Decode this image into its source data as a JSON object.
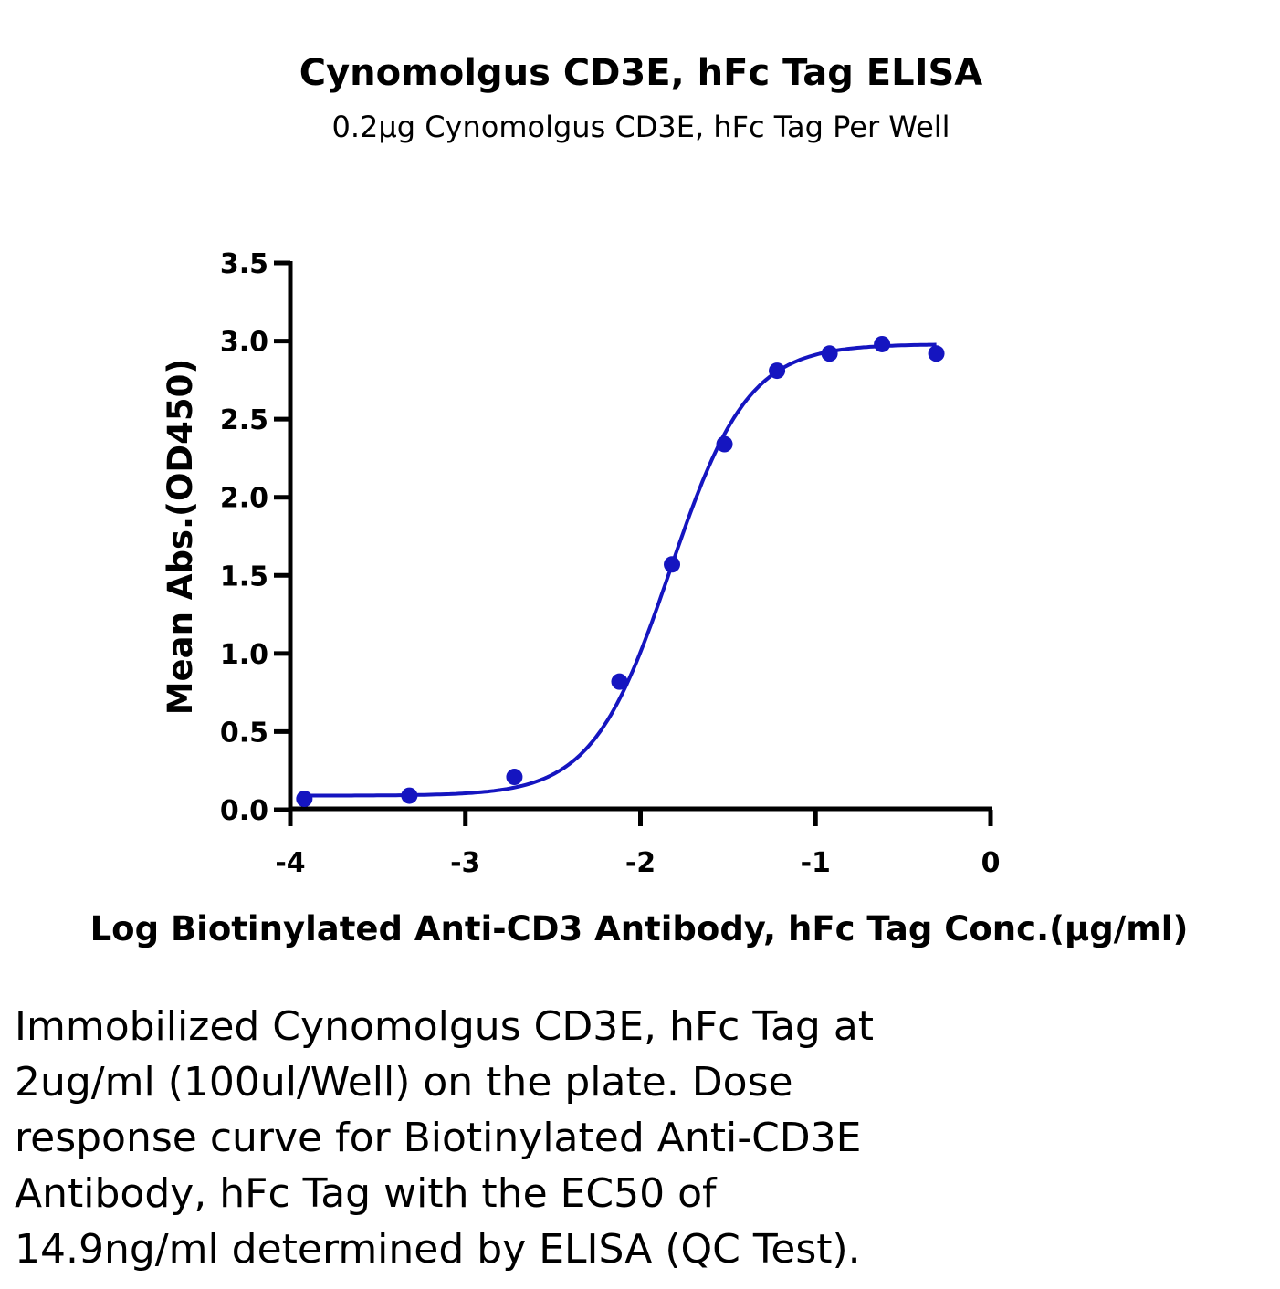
{
  "caption": "Immobilized Cynomolgus CD3E, hFc Tag at\n2ug/ml (100ul/Well) on the plate. Dose\nresponse curve for Biotinylated Anti-CD3E\nAntibody, hFc Tag with the EC50 of\n14.9ng/ml determined by ELISA (QC Test).",
  "chart_data": {
    "type": "scatter",
    "title": "Cynomolgus CD3E, hFc Tag ELISA",
    "subtitle": "0.2μg Cynomolgus CD3E, hFc Tag Per Well",
    "xlabel": "Log Biotinylated Anti-CD3 Antibody, hFc Tag Conc.(μg/ml)",
    "ylabel": "Mean Abs.(OD450)",
    "xlim": [
      -4,
      0
    ],
    "ylim": [
      0,
      3.5
    ],
    "x_ticks": [
      "-4",
      "-3",
      "-2",
      "-1",
      "0"
    ],
    "y_ticks": [
      "0.0",
      "0.5",
      "1.0",
      "1.5",
      "2.0",
      "2.5",
      "3.0",
      "3.5"
    ],
    "grid": false,
    "color": "#1515c0",
    "fit": "four-parameter logistic curve",
    "points": [
      {
        "x": -3.92,
        "y": 0.07
      },
      {
        "x": -3.32,
        "y": 0.09
      },
      {
        "x": -2.72,
        "y": 0.21
      },
      {
        "x": -2.12,
        "y": 0.82
      },
      {
        "x": -1.82,
        "y": 1.57
      },
      {
        "x": -1.52,
        "y": 2.34
      },
      {
        "x": -1.22,
        "y": 2.81
      },
      {
        "x": -0.92,
        "y": 2.92
      },
      {
        "x": -0.62,
        "y": 2.98
      },
      {
        "x": -0.31,
        "y": 2.92
      }
    ]
  }
}
